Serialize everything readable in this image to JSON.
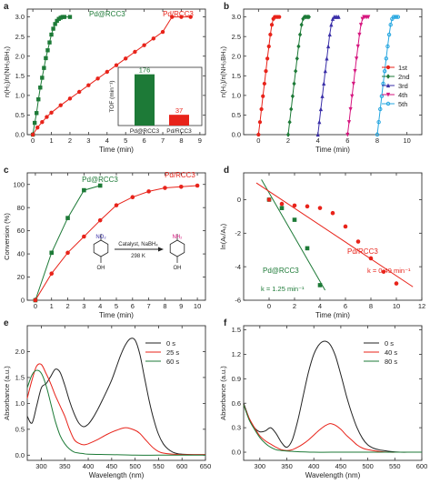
{
  "colors": {
    "red": "#e8231a",
    "green": "#1d7a37",
    "blue": "#3a2fa8",
    "magenta": "#d6167f",
    "cyan": "#27a7e0",
    "black": "#222222"
  },
  "chart_data": [
    {
      "panel": "a",
      "type": "line",
      "xlabel": "Time (min)",
      "ylabel": "n(H₂)/n(NH₃BH₃)",
      "xlim": [
        -0.3,
        9.3
      ],
      "ylim": [
        0,
        3.2
      ],
      "xticks": [
        0,
        1,
        2,
        3,
        4,
        5,
        6,
        7,
        8,
        9
      ],
      "yticks": [
        0.0,
        0.5,
        1.0,
        1.5,
        2.0,
        2.5,
        3.0
      ],
      "series": [
        {
          "name": "Pd@RCC3",
          "color": "#1d7a37",
          "marker": "square",
          "x": [
            0,
            0.1,
            0.2,
            0.3,
            0.4,
            0.5,
            0.6,
            0.7,
            0.8,
            0.9,
            1.0,
            1.1,
            1.2,
            1.3,
            1.4,
            1.5,
            1.6,
            1.7,
            2.0
          ],
          "y": [
            0,
            0.3,
            0.55,
            0.9,
            1.2,
            1.45,
            1.7,
            1.95,
            2.15,
            2.35,
            2.55,
            2.7,
            2.82,
            2.9,
            2.95,
            2.98,
            3.0,
            3.0,
            3.0
          ]
        },
        {
          "name": "Pd/RCC3",
          "color": "#e8231a",
          "marker": "circle",
          "x": [
            0,
            0.25,
            0.5,
            0.75,
            1,
            1.5,
            2,
            2.5,
            3,
            3.5,
            4,
            4.5,
            5,
            5.5,
            6,
            6.5,
            7,
            7.5,
            8,
            8.5
          ],
          "y": [
            0,
            0.18,
            0.32,
            0.45,
            0.56,
            0.75,
            0.92,
            1.09,
            1.26,
            1.43,
            1.6,
            1.77,
            1.94,
            2.11,
            2.28,
            2.45,
            2.62,
            3.0,
            3.0,
            3.0
          ]
        }
      ],
      "inset": {
        "type": "bar",
        "ylabel": "TOF (min⁻¹)",
        "categories": [
          "Pd@RCC3",
          "Pd/RCC3"
        ],
        "values": [
          176,
          37
        ],
        "labels": [
          "176",
          "37"
        ],
        "colors": [
          "#1d7a37",
          "#e8231a"
        ],
        "ylim": [
          0,
          200
        ]
      }
    },
    {
      "panel": "b",
      "type": "line",
      "xlabel": "Time (min)",
      "ylabel": "n(H₂)/n(NH₃BH₃)",
      "xlim": [
        -1,
        11
      ],
      "ylim": [
        0,
        3.2
      ],
      "xticks": [
        0,
        2,
        4,
        6,
        8,
        10
      ],
      "yticks": [
        0.0,
        0.5,
        1.0,
        1.5,
        2.0,
        2.5,
        3.0
      ],
      "series": [
        {
          "name": "1st",
          "color": "#e8231a",
          "marker": "circle",
          "start": 0.0
        },
        {
          "name": "2nd",
          "color": "#1d7a37",
          "marker": "diamond",
          "start": 2.0
        },
        {
          "name": "3rd",
          "color": "#3a2fa8",
          "marker": "triangle",
          "start": 4.0
        },
        {
          "name": "4th",
          "color": "#d6167f",
          "marker": "triangle-down",
          "start": 6.0
        },
        {
          "name": "5th",
          "color": "#27a7e0",
          "marker": "circle-open",
          "start": 8.0
        }
      ],
      "cycle_shape": {
        "dx": [
          0,
          0.1,
          0.2,
          0.3,
          0.4,
          0.5,
          0.6,
          0.7,
          0.8,
          0.9,
          1.0,
          1.1,
          1.2,
          1.3,
          1.4
        ],
        "y": [
          0,
          0.32,
          0.65,
          0.98,
          1.3,
          1.62,
          1.94,
          2.25,
          2.55,
          2.8,
          2.95,
          3.0,
          3.0,
          3.0,
          3.0
        ]
      }
    },
    {
      "panel": "c",
      "type": "line",
      "xlabel": "Time (min)",
      "ylabel": "Conversion (%)",
      "xlim": [
        -0.5,
        10.5
      ],
      "ylim": [
        0,
        110
      ],
      "xticks": [
        0,
        1,
        2,
        3,
        4,
        5,
        6,
        7,
        8,
        9,
        10
      ],
      "yticks": [
        0,
        20,
        40,
        60,
        80,
        100
      ],
      "series": [
        {
          "name": "Pd@RCC3",
          "color": "#1d7a37",
          "marker": "square",
          "x": [
            0,
            1,
            2,
            3,
            4
          ],
          "y": [
            0,
            41,
            71,
            95,
            99
          ]
        },
        {
          "name": "Pd/RCC3",
          "color": "#e8231a",
          "marker": "circle",
          "x": [
            0,
            1,
            2,
            3,
            4,
            5,
            6,
            7,
            8,
            9,
            10
          ],
          "y": [
            0,
            23,
            41,
            55,
            69,
            82,
            89,
            94,
            97,
            98,
            99
          ]
        }
      ],
      "scheme": {
        "reactant_group": "NO₂",
        "product_group": "NH₂",
        "substituent": "OH",
        "arrow_top": "Catalyst, NaBH₄",
        "arrow_bottom": "298 K"
      }
    },
    {
      "panel": "d",
      "type": "scatter",
      "xlabel": "Time (min)",
      "ylabel": "ln(Aₜ/A₀)",
      "xlim": [
        -2,
        12
      ],
      "ylim": [
        -6,
        1.6
      ],
      "xticks": [
        0,
        2,
        4,
        6,
        8,
        10,
        12
      ],
      "yticks": [
        -6,
        -4,
        -2,
        0
      ],
      "series": [
        {
          "name": "Pd@RCC3",
          "color": "#1d7a37",
          "marker": "square",
          "x": [
            0,
            1,
            2,
            3,
            4
          ],
          "y": [
            0,
            -0.5,
            -1.2,
            -2.9,
            -5.1
          ],
          "fit": {
            "x": [
              -0.6,
              4.4
            ],
            "y": [
              1.2,
              -5.4
            ]
          },
          "annotation": "k = 1.25 min⁻¹"
        },
        {
          "name": "Pd/RCC3",
          "color": "#e8231a",
          "marker": "circle",
          "x": [
            0,
            1,
            2,
            3,
            4,
            5,
            6,
            7,
            8,
            9,
            10
          ],
          "y": [
            0,
            -0.25,
            -0.35,
            -0.4,
            -0.5,
            -0.8,
            -1.6,
            -2.5,
            -3.5,
            -4.3,
            -5.0
          ],
          "fit": {
            "x": [
              -1,
              11.3
            ],
            "y": [
              1.0,
              -5.2
            ]
          },
          "annotation": "k = 0.49 min⁻¹"
        }
      ]
    },
    {
      "panel": "e",
      "type": "line",
      "xlabel": "Wavelength (nm)",
      "ylabel": "Absorbance (a.u.)",
      "xlim": [
        270,
        650
      ],
      "ylim": [
        -0.1,
        2.5
      ],
      "xticks": [
        300,
        350,
        400,
        450,
        500,
        550,
        600,
        650
      ],
      "yticks": [
        0.0,
        0.5,
        1.0,
        1.5,
        2.0
      ],
      "legend": [
        "0 s",
        "25 s",
        "60 s"
      ],
      "series": [
        {
          "name": "0 s",
          "color": "#222222",
          "x": [
            270,
            280,
            290,
            300,
            310,
            320,
            330,
            340,
            350,
            360,
            370,
            380,
            390,
            400,
            410,
            420,
            430,
            440,
            450,
            460,
            470,
            480,
            490,
            500,
            510,
            520,
            530,
            540,
            550,
            560,
            570,
            580,
            590,
            600,
            625,
            650
          ],
          "y": [
            0.75,
            0.62,
            0.95,
            1.3,
            1.38,
            1.52,
            1.66,
            1.6,
            1.35,
            1.05,
            0.8,
            0.62,
            0.55,
            0.6,
            0.72,
            0.88,
            1.06,
            1.25,
            1.45,
            1.7,
            1.95,
            2.14,
            2.25,
            2.22,
            1.95,
            1.5,
            1.05,
            0.68,
            0.4,
            0.22,
            0.12,
            0.06,
            0.03,
            0.02,
            0.01,
            0.01
          ]
        },
        {
          "name": "25 s",
          "color": "#e8231a",
          "x": [
            270,
            280,
            290,
            300,
            310,
            320,
            330,
            340,
            350,
            360,
            370,
            380,
            390,
            400,
            420,
            440,
            460,
            480,
            500,
            510,
            520,
            530,
            540,
            550,
            560,
            580,
            600,
            650
          ],
          "y": [
            1.1,
            1.45,
            1.72,
            1.75,
            1.58,
            1.38,
            1.15,
            0.95,
            0.75,
            0.5,
            0.3,
            0.23,
            0.2,
            0.22,
            0.3,
            0.4,
            0.48,
            0.53,
            0.48,
            0.42,
            0.32,
            0.22,
            0.13,
            0.07,
            0.04,
            0.02,
            0.01,
            0.01
          ]
        },
        {
          "name": "60 s",
          "color": "#1d7a37",
          "x": [
            270,
            280,
            290,
            300,
            310,
            320,
            330,
            340,
            350,
            360,
            370,
            380,
            390,
            400,
            450,
            500,
            550,
            600,
            650
          ],
          "y": [
            1.3,
            1.55,
            1.64,
            1.58,
            1.35,
            1.0,
            0.65,
            0.38,
            0.22,
            0.12,
            0.06,
            0.04,
            0.03,
            0.02,
            0.01,
            0.0,
            0.0,
            0.0,
            0.0
          ]
        }
      ]
    },
    {
      "panel": "f",
      "type": "line",
      "xlabel": "Wavelength (nm)",
      "ylabel": "Absorbance (a.u.)",
      "xlim": [
        270,
        600
      ],
      "ylim": [
        -0.1,
        1.55
      ],
      "xticks": [
        300,
        350,
        400,
        450,
        500,
        550,
        600
      ],
      "yticks": [
        0.0,
        0.3,
        0.6,
        0.9,
        1.2,
        1.5
      ],
      "legend": [
        "0 s",
        "40 s",
        "80 s"
      ],
      "series": [
        {
          "name": "0 s",
          "color": "#222222",
          "x": [
            270,
            280,
            290,
            300,
            310,
            320,
            330,
            340,
            350,
            360,
            370,
            380,
            390,
            400,
            410,
            420,
            430,
            440,
            450,
            460,
            470,
            480,
            490,
            500,
            510,
            520,
            530,
            540,
            560,
            580,
            600
          ],
          "y": [
            0.6,
            0.42,
            0.3,
            0.25,
            0.26,
            0.3,
            0.23,
            0.12,
            0.06,
            0.15,
            0.38,
            0.68,
            0.98,
            1.2,
            1.32,
            1.36,
            1.32,
            1.18,
            0.95,
            0.7,
            0.48,
            0.3,
            0.17,
            0.09,
            0.05,
            0.03,
            0.02,
            0.01,
            0.0,
            0.0,
            0.0
          ]
        },
        {
          "name": "40 s",
          "color": "#e8231a",
          "x": [
            270,
            280,
            290,
            300,
            310,
            320,
            330,
            340,
            350,
            360,
            370,
            380,
            390,
            400,
            410,
            420,
            430,
            440,
            450,
            460,
            470,
            480,
            490,
            500,
            520,
            540,
            560,
            600
          ],
          "y": [
            0.58,
            0.42,
            0.3,
            0.2,
            0.14,
            0.1,
            0.06,
            0.03,
            0.02,
            0.03,
            0.06,
            0.1,
            0.15,
            0.21,
            0.27,
            0.32,
            0.35,
            0.33,
            0.28,
            0.21,
            0.15,
            0.09,
            0.05,
            0.03,
            0.01,
            0.0,
            0.0,
            0.0
          ]
        },
        {
          "name": "80 s",
          "color": "#1d7a37",
          "x": [
            270,
            280,
            290,
            300,
            310,
            320,
            330,
            340,
            360,
            400,
            450,
            500,
            550,
            600
          ],
          "y": [
            0.58,
            0.4,
            0.28,
            0.18,
            0.11,
            0.06,
            0.03,
            0.02,
            0.01,
            0.0,
            0.0,
            0.0,
            0.0,
            0.0
          ]
        }
      ]
    }
  ]
}
